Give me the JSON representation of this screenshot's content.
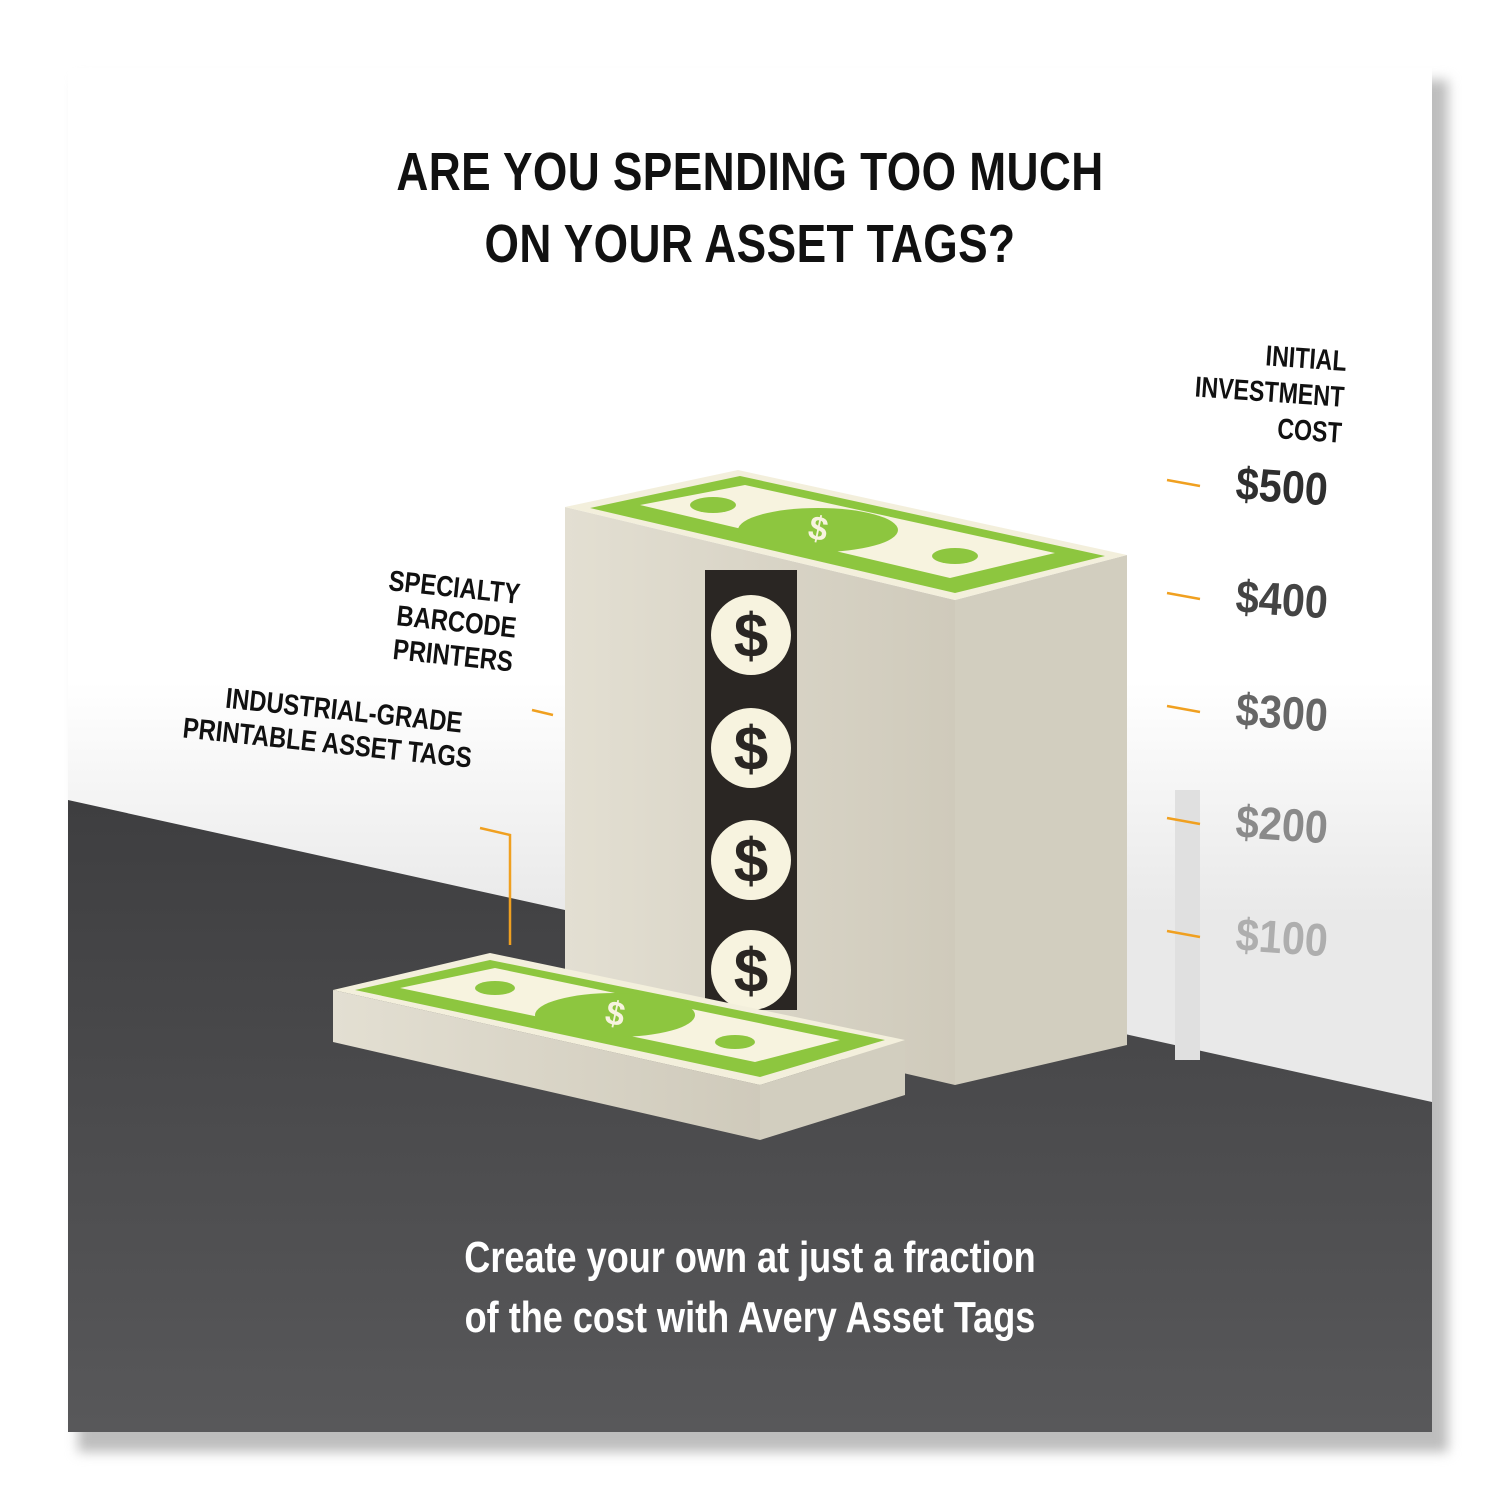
{
  "title": {
    "line1": "ARE YOU SPENDING TOO MUCH",
    "line2": "ON YOUR ASSET TAGS?"
  },
  "scale": {
    "title_lines": [
      "INITIAL",
      "INVESTMENT",
      "COST"
    ],
    "ticks": [
      {
        "label": "$500",
        "color": "#2f2f2f"
      },
      {
        "label": "$400",
        "color": "#444444"
      },
      {
        "label": "$300",
        "color": "#666666"
      },
      {
        "label": "$200",
        "color": "#8a8a8a"
      },
      {
        "label": "$100",
        "color": "#aeaeae"
      }
    ],
    "tick_color": "#f0a020"
  },
  "labels": {
    "printers": [
      "SPECIALTY",
      "BARCODE",
      "PRINTERS"
    ],
    "tags": [
      "INDUSTRIAL-GRADE",
      "PRINTABLE ASSET TAGS"
    ]
  },
  "footer": {
    "line1": "Create your own at just a fraction",
    "line2": "of the cost with Avery Asset Tags"
  },
  "colors": {
    "bill_green": "#8dc63f",
    "bill_paper": "#f7f3df",
    "stack_side": "#d9d5c8",
    "floor": "#454547"
  }
}
